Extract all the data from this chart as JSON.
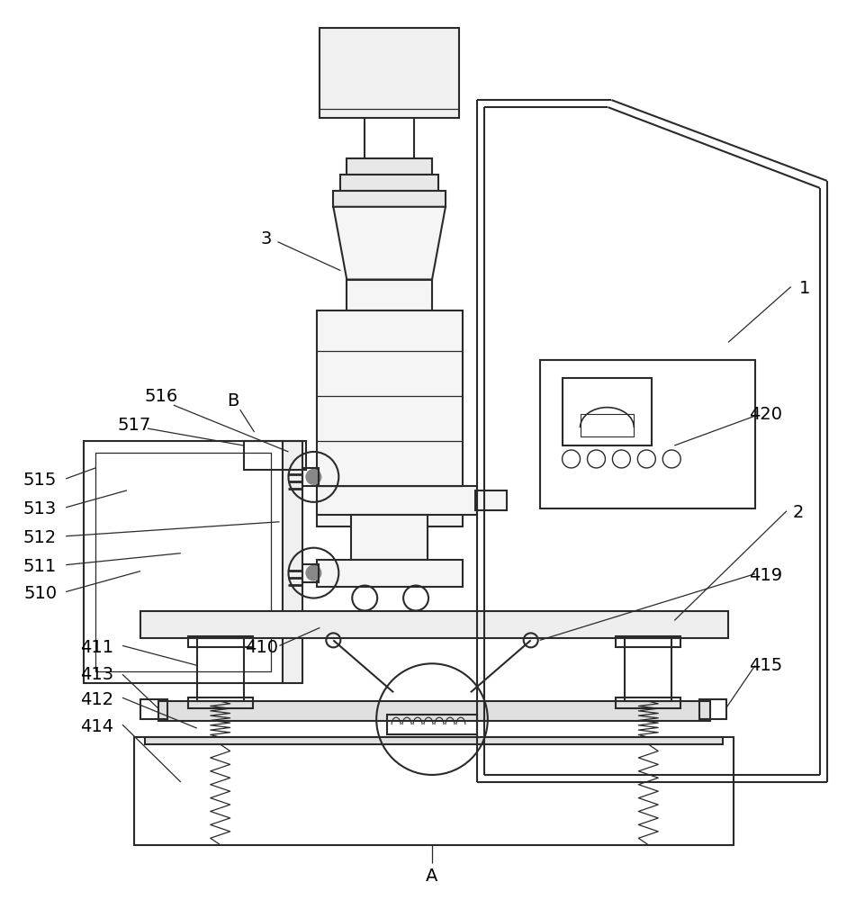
{
  "bg_color": "#ffffff",
  "lc": "#2a2a2a",
  "lw": 1.5,
  "tlw": 0.9,
  "fs": 14,
  "fs_small": 11
}
